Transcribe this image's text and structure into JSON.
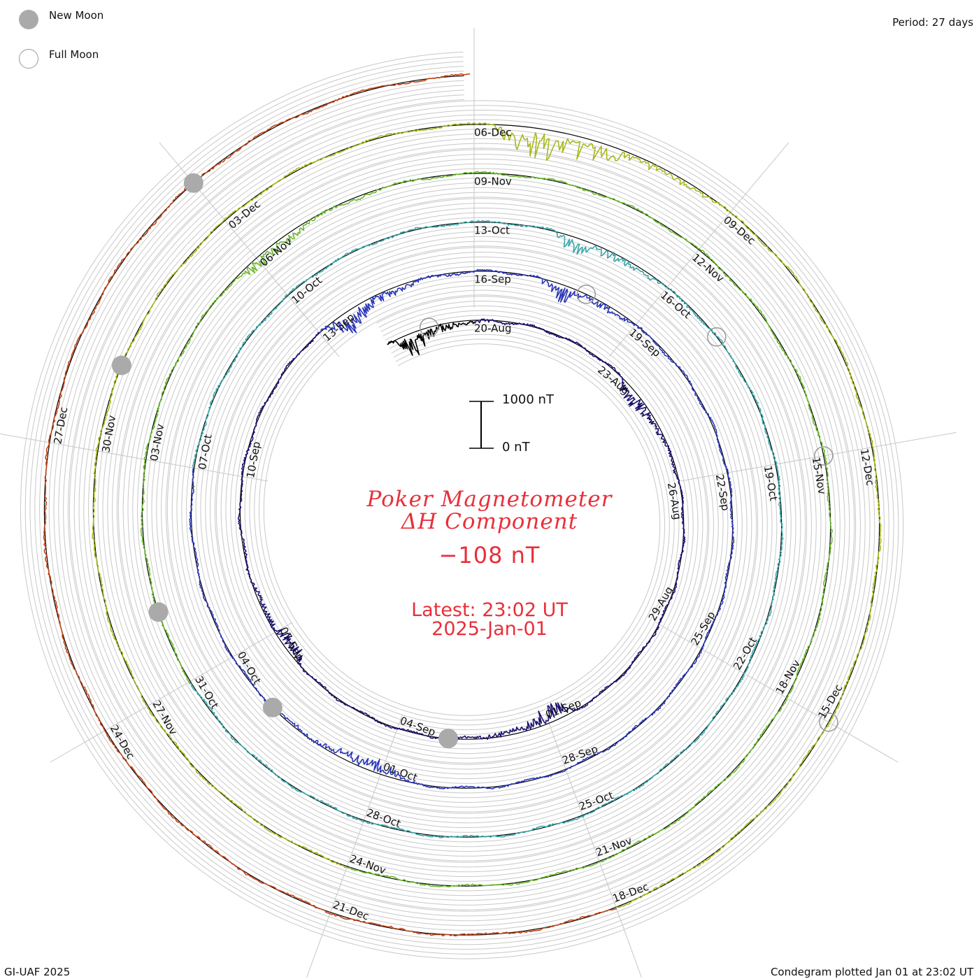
{
  "legend": {
    "new_moon": "New Moon",
    "full_moon": "Full Moon"
  },
  "period_label": "Period: 27 days",
  "footer": {
    "credit": "GI-UAF 2025",
    "plotted": "Condegram plotted Jan 01 at 23:02 UT"
  },
  "title": {
    "line1": "Poker Magnetometer",
    "line2": "ΔH Component",
    "value": "−108 nT",
    "latest": "Latest: 23:02 UT",
    "date": "2025-Jan-01"
  },
  "scale": {
    "top_label": "1000 nT",
    "bottom_label": "0 nT"
  },
  "colors": {
    "grid": "#c8c8c8",
    "baseline": "#000000",
    "moon_new": "#aaaaaa",
    "moon_full": "#999999",
    "title": "#e8303a"
  },
  "chart_data": {
    "type": "line",
    "subtype": "spiral condegram",
    "period_days": 27,
    "y_unit": "nT",
    "scale_bar_nT": [
      0,
      1000
    ],
    "start_date": "2024-08-18",
    "end_date": "2025-01-01",
    "date_ticks": [
      "20-Aug",
      "23-Aug",
      "26-Aug",
      "29-Aug",
      "01-Sep",
      "04-Sep",
      "07-Sep",
      "10-Sep",
      "13-Sep",
      "16-Sep",
      "19-Sep",
      "22-Sep",
      "25-Sep",
      "28-Sep",
      "01-Oct",
      "04-Oct",
      "07-Oct",
      "10-Oct",
      "13-Oct",
      "16-Oct",
      "19-Oct",
      "22-Oct",
      "25-Oct",
      "28-Oct",
      "31-Oct",
      "03-Nov",
      "06-Nov",
      "09-Nov",
      "12-Nov",
      "15-Nov",
      "18-Nov",
      "21-Nov",
      "24-Nov",
      "27-Nov",
      "30-Nov",
      "03-Dec",
      "06-Dec",
      "09-Dec",
      "12-Dec",
      "15-Dec",
      "18-Dec",
      "21-Dec",
      "24-Dec",
      "27-Dec"
    ],
    "series": [
      {
        "color": "#000000",
        "date_range": [
          "18-Aug",
          "20-Aug"
        ]
      },
      {
        "color": "#1a1270",
        "date_range": [
          "20-Aug",
          "13-Sep"
        ]
      },
      {
        "color": "#2a36b8",
        "date_range": [
          "13-Sep",
          "07-Oct"
        ]
      },
      {
        "color": "#3aa6a8",
        "date_range": [
          "07-Oct",
          "31-Oct"
        ]
      },
      {
        "color": "#6ab82c",
        "date_range": [
          "31-Oct",
          "24-Nov"
        ]
      },
      {
        "color": "#a8b81c",
        "date_range": [
          "24-Nov",
          "18-Dec"
        ]
      },
      {
        "color": "#c04418",
        "date_range": [
          "18-Dec",
          "01-Jan"
        ]
      }
    ],
    "approx_values_nT": {
      "baseline": 0,
      "typical_disturbance_range": [
        -800,
        300
      ],
      "latest": -108
    },
    "new_moons": [
      "03-Sep",
      "03-Oct",
      "01-Nov",
      "01-Dec",
      "30-Dec"
    ],
    "full_moons": [
      "19-Aug",
      "18-Sep",
      "17-Oct",
      "15-Nov",
      "15-Dec"
    ]
  }
}
